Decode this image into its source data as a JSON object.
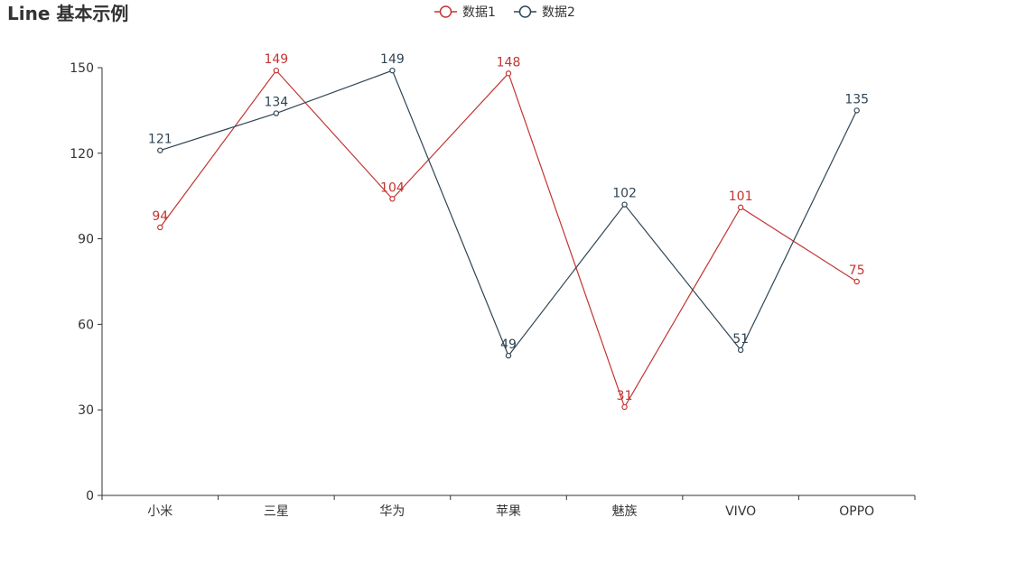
{
  "chart_data": {
    "type": "line",
    "title": "Line 基本示例",
    "categories": [
      "小米",
      "三星",
      "华为",
      "苹果",
      "魅族",
      "VIVO",
      "OPPO"
    ],
    "series": [
      {
        "name": "数据1",
        "color": "#c23531",
        "values": [
          94,
          149,
          104,
          148,
          31,
          101,
          75
        ]
      },
      {
        "name": "数据2",
        "color": "#2f4554",
        "values": [
          121,
          134,
          149,
          49,
          102,
          51,
          135
        ]
      }
    ],
    "ylim": [
      0,
      150
    ],
    "yticks": [
      0,
      30,
      60,
      90,
      120,
      150
    ],
    "xlabel": "",
    "ylabel": "",
    "grid": false,
    "legend_position": "top-center",
    "data_labels": true
  }
}
